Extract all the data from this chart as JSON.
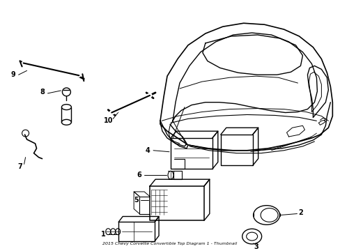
{
  "title": "2015 Chevy Corvette Convertible Top Diagram 1 - Thumbnail",
  "background_color": "#ffffff",
  "line_color": "#000000",
  "fig_width": 4.89,
  "fig_height": 3.6,
  "dpi": 100
}
